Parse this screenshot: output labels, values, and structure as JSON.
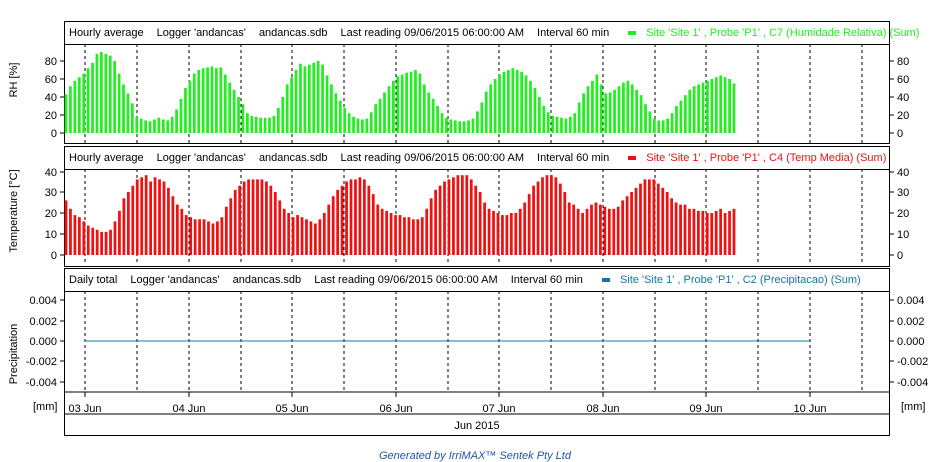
{
  "colors": {
    "rh": "#22ee22",
    "temp": "#ee1111",
    "precip": "#1177aa",
    "grid": "#000000"
  },
  "days": [
    "03 Jun",
    "04 Jun",
    "05 Jun",
    "06 Jun",
    "07 Jun",
    "08 Jun",
    "09 Jun",
    "10 Jun"
  ],
  "month_label": "Jun 2015",
  "units_label": "[mm]",
  "footer": "Generated by IrriMAX™ Sentek Pty Ltd",
  "panels": [
    {
      "id": "rh",
      "header": {
        "mode": "Hourly average",
        "logger": "Logger 'andancas'",
        "file": "andancas.sdb",
        "last": "Last reading 09/06/2015 06:00:00 AM",
        "interval": "Interval 60 min",
        "legend": "Site 'Site 1' , Probe 'P1' , C7 (Humidade Relativa) (Sum)"
      },
      "ylabel": "RH [%]",
      "ticks": [
        "0",
        "20",
        "40",
        "60",
        "80"
      ]
    },
    {
      "id": "temp",
      "header": {
        "mode": "Hourly average",
        "logger": "Logger 'andancas'",
        "file": "andancas.sdb",
        "last": "Last reading 09/06/2015 06:00:00 AM",
        "interval": "Interval 60 min",
        "legend": "Site 'Site 1' , Probe 'P1' , C4 (Temp Media) (Sum)"
      },
      "ylabel": "Temperature [°C]",
      "ticks": [
        "0",
        "10",
        "20",
        "30",
        "40"
      ]
    },
    {
      "id": "precip",
      "header": {
        "mode": "Daily total",
        "logger": "Logger 'andancas'",
        "file": "andancas.sdb",
        "last": "Last reading 09/06/2015 06:00:00 AM",
        "interval": "Interval 60 min",
        "legend": "Site 'Site 1' , Probe 'P1' , C2 (Precipitacao) (Sum)"
      },
      "ylabel": "Precipitation",
      "ticks": [
        "-0.004",
        "-0.002",
        "0.000",
        "0.002",
        "0.004"
      ]
    }
  ],
  "chart_data": [
    {
      "type": "bar",
      "ylabel": "RH [%]",
      "ylim": [
        0,
        100
      ],
      "x_start": "2015-06-02 18:00",
      "x_end": "2015-06-10 12:00",
      "values": [
        43,
        52,
        58,
        62,
        66,
        72,
        78,
        88,
        90,
        88,
        86,
        80,
        66,
        54,
        44,
        33,
        18,
        16,
        14,
        13,
        15,
        17,
        15,
        14,
        18,
        26,
        38,
        50,
        58,
        66,
        70,
        72,
        73,
        74,
        72,
        73,
        65,
        56,
        48,
        40,
        32,
        22,
        19,
        18,
        17,
        17,
        17,
        19,
        28,
        40,
        54,
        62,
        70,
        77,
        74,
        76,
        78,
        80,
        76,
        64,
        54,
        44,
        36,
        28,
        22,
        18,
        16,
        15,
        16,
        23,
        32,
        38,
        45,
        52,
        58,
        63,
        65,
        67,
        68,
        70,
        66,
        54,
        45,
        38,
        30,
        22,
        17,
        15,
        14,
        13,
        13,
        14,
        16,
        24,
        34,
        46,
        54,
        60,
        65,
        68,
        70,
        72,
        70,
        68,
        64,
        58,
        50,
        40,
        30,
        23,
        19,
        18,
        17,
        16,
        18,
        22,
        34,
        44,
        52,
        58,
        65,
        54,
        44,
        45,
        48,
        52,
        56,
        58,
        54,
        48,
        42,
        32,
        24,
        16,
        14,
        14,
        16,
        22,
        30,
        36,
        42,
        48,
        52,
        54,
        56,
        58,
        60,
        62,
        64,
        62,
        60,
        55
      ]
    },
    {
      "type": "bar",
      "ylabel": "Temperature [°C]",
      "ylim": [
        0,
        40
      ],
      "x_start": "2015-06-02 18:00",
      "x_end": "2015-06-10 12:00",
      "values": [
        26,
        22,
        19,
        18,
        16,
        14,
        13,
        12,
        11,
        11,
        12,
        16,
        21,
        27,
        30,
        33,
        36,
        37,
        38,
        35,
        37,
        36,
        35,
        32,
        28,
        24,
        22,
        19,
        18,
        17,
        17,
        17,
        16,
        15,
        16,
        18,
        23,
        27,
        31,
        33,
        35,
        36,
        36,
        36,
        36,
        35,
        33,
        30,
        26,
        22,
        20,
        18,
        19,
        18,
        17,
        16,
        15,
        17,
        20,
        24,
        28,
        31,
        33,
        35,
        36,
        36,
        37,
        36,
        33,
        29,
        24,
        22,
        21,
        20,
        19,
        19,
        18,
        18,
        17,
        17,
        18,
        22,
        27,
        31,
        33,
        35,
        36,
        37,
        38,
        38,
        38,
        36,
        33,
        30,
        25,
        22,
        21,
        20,
        19,
        19,
        20,
        20,
        22,
        25,
        29,
        33,
        35,
        37,
        38,
        38,
        37,
        34,
        30,
        25,
        24,
        22,
        20,
        22,
        24,
        25,
        24,
        23,
        22,
        22,
        23,
        26,
        28,
        30,
        32,
        34,
        36,
        36,
        36,
        34,
        32,
        30,
        27,
        25,
        24,
        24,
        22,
        22,
        21,
        21,
        20,
        20,
        21,
        22,
        20,
        21,
        22
      ]
    },
    {
      "type": "line",
      "ylabel": "Precipitation",
      "ylim": [
        -0.005,
        0.005
      ],
      "x": [
        "2015-06-03",
        "2015-06-04",
        "2015-06-05",
        "2015-06-06",
        "2015-06-07",
        "2015-06-08",
        "2015-06-09",
        "2015-06-10"
      ],
      "y": [
        0,
        0,
        0,
        0,
        0,
        0,
        0,
        0
      ]
    }
  ]
}
